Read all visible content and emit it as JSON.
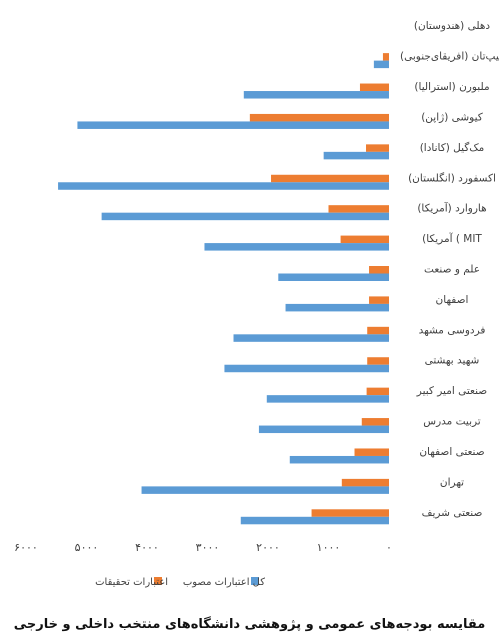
{
  "chart_data": {
    "type": "bar",
    "orientation": "horizontal",
    "x_axis_reversed": true,
    "xlim": [
      0,
      6000
    ],
    "xticks": [
      "۶۰۰۰",
      "۵۰۰۰",
      "۴۰۰۰",
      "۳۰۰۰",
      "۲۰۰۰",
      "۱۰۰۰",
      "۰"
    ],
    "categories": [
      "دهلی (هندوستان)",
      "کیپ‌تان (افریقای‌جنوبی)",
      "ملبورن (استرالیا)",
      "کیوشی (ژاپن)",
      "مک‌گیل (کانادا)",
      "اکسفورد (انگلستان)",
      "هاروارد (آمریکا)",
      "MIT ) آمریکا)",
      "علم و صنعت",
      "اصفهان",
      "فردوسی مشهد",
      "شهید بهشتی",
      "صنعتی امیر کبیر",
      "تربیت مدرس",
      "صنعتی اصفهان",
      "تهران",
      "صنعتی شریف"
    ],
    "series": [
      {
        "name": "اعتبارات تحقیقات",
        "color": "#ED7D31",
        "values": [
          0,
          100,
          480,
          2300,
          380,
          1950,
          1000,
          800,
          330,
          330,
          360,
          360,
          370,
          450,
          570,
          780,
          1280
        ]
      },
      {
        "name": "کل اعتبارات مصوب",
        "color": "#5B9BD5",
        "values": [
          0,
          250,
          2400,
          5150,
          1080,
          5470,
          4750,
          3050,
          1830,
          1710,
          2570,
          2720,
          2020,
          2150,
          1640,
          4090,
          2450
        ]
      }
    ],
    "legend_position": "bottom",
    "grid": false
  },
  "caption": "مقایسه بودجه‌های عمومی و پژوهشی دانشگاه‌های منتخب داخلی و خارجی"
}
